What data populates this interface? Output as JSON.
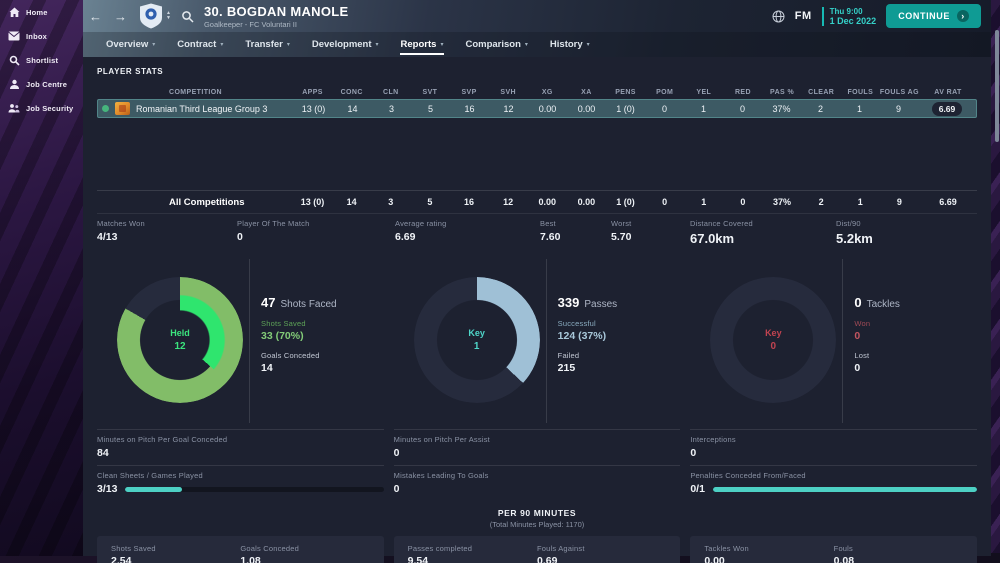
{
  "sidebar": {
    "items": [
      {
        "label": "Home",
        "icon": "home-icon"
      },
      {
        "label": "Inbox",
        "icon": "inbox-icon"
      },
      {
        "label": "Shortlist",
        "icon": "search-icon"
      },
      {
        "label": "Job Centre",
        "icon": "job-centre-icon"
      },
      {
        "label": "Job Security",
        "icon": "job-security-icon"
      }
    ]
  },
  "header": {
    "title": "30. BOGDAN MANOLE",
    "subtitle": "Goalkeeper - FC Voluntari II",
    "fm_logo": "FM",
    "datetime": {
      "time": "Thu 9:00",
      "date": "1 Dec 2022"
    },
    "continue_label": "CONTINUE",
    "tabs": [
      {
        "label": "Overview"
      },
      {
        "label": "Contract"
      },
      {
        "label": "Transfer"
      },
      {
        "label": "Development"
      },
      {
        "label": "Reports",
        "active": true
      },
      {
        "label": "Comparison"
      },
      {
        "label": "History"
      }
    ]
  },
  "player_stats": {
    "section_title": "PLAYER STATS",
    "columns": [
      "COMPETITION",
      "APPS",
      "CONC",
      "CLN",
      "SVT",
      "SVP",
      "SVH",
      "XG",
      "XA",
      "PENS",
      "POM",
      "YEL",
      "RED",
      "PAS %",
      "CLEAR",
      "FOULS",
      "FOULS AG",
      "AV RAT"
    ],
    "rows": [
      {
        "competition": "Romanian Third League Group 3",
        "values": [
          "13 (0)",
          "14",
          "3",
          "5",
          "16",
          "12",
          "0.00",
          "0.00",
          "1 (0)",
          "0",
          "1",
          "0",
          "37%",
          "2",
          "1",
          "9",
          "6.69"
        ]
      }
    ],
    "totals": {
      "label": "All Competitions",
      "values": [
        "13 (0)",
        "14",
        "3",
        "5",
        "16",
        "12",
        "0.00",
        "0.00",
        "1 (0)",
        "0",
        "1",
        "0",
        "37%",
        "2",
        "1",
        "9",
        "6.69"
      ]
    }
  },
  "summary_stats": [
    {
      "label": "Matches Won",
      "value": "4/13"
    },
    {
      "label": "Player Of The Match",
      "value": "0"
    },
    {
      "label": "Average rating",
      "value": "6.69"
    },
    {
      "label": "Best",
      "value": "7.60"
    },
    {
      "label": "Worst",
      "value": "5.70"
    },
    {
      "label": "Distance Covered",
      "value": "67.0km"
    },
    {
      "label": "Dist/90",
      "value": "5.2km"
    }
  ],
  "donuts": [
    {
      "center_label": "Held",
      "center_value": "12",
      "headline_value": "47",
      "headline_label": "Shots Faced",
      "stat1_label": "Shots Saved",
      "stat1_value": "33 (70%)",
      "stat2_label": "Goals Conceded",
      "stat2_value": "14",
      "accent_color": "#3be47e",
      "arcs": [
        {
          "color": "#82bd68",
          "from_deg": 0,
          "to_deg": 300,
          "band": "outer"
        },
        {
          "color": "#2fe56e",
          "from_deg": 0,
          "to_deg": 131,
          "band": "inner"
        }
      ]
    },
    {
      "center_label": "Key",
      "center_value": "1",
      "headline_value": "339",
      "headline_label": "Passes",
      "stat1_label": "Successful",
      "stat1_value": "124 (37%)",
      "stat2_label": "Failed",
      "stat2_value": "215",
      "accent_color": "#4fd6c9",
      "arcs": [
        {
          "color": "#9fc0d6",
          "from_deg": 0,
          "to_deg": 133,
          "band": "outer"
        }
      ]
    },
    {
      "center_label": "Key",
      "center_value": "0",
      "headline_value": "0",
      "headline_label": "Tackles",
      "stat1_label": "Won",
      "stat1_value": "0",
      "stat2_label": "Lost",
      "stat2_value": "0",
      "accent_color": "#c04350",
      "arcs": []
    }
  ],
  "mid_row1": [
    {
      "label": "Minutes on Pitch Per Goal Conceded",
      "value": "84"
    },
    {
      "label": "Minutes on Pitch Per Assist",
      "value": "0"
    },
    {
      "label": "Interceptions",
      "value": "0"
    }
  ],
  "mid_row2": [
    {
      "label": "Clean Sheets / Games Played",
      "value": "3/13",
      "bar_pct": 22
    },
    {
      "label": "Mistakes Leading To Goals",
      "value": "0",
      "bar_pct": null
    },
    {
      "label": "Penalties Conceded From/Faced",
      "value": "0/1",
      "bar_pct": 100
    }
  ],
  "per90": {
    "title": "PER 90 MINUTES",
    "subtitle": "(Total Minutes Played: 1170)",
    "panels": [
      [
        {
          "label": "Shots Saved",
          "value": "2.54"
        },
        {
          "label": "Goals Conceded",
          "value": "1.08"
        }
      ],
      [
        {
          "label": "Passes completed",
          "value": "9.54"
        },
        {
          "label": "Fouls Against",
          "value": "0.69"
        }
      ],
      [
        {
          "label": "Tackles Won",
          "value": "0.00"
        },
        {
          "label": "Fouls",
          "value": "0.08"
        }
      ]
    ]
  },
  "colors": {
    "accent_teal": "#4dd0c4",
    "continue_green": "#0f9b94",
    "row_highlight": "#3d5a64",
    "content_bg": "#1d2130",
    "sidebar_purple": "#2c1743",
    "saved_green": "#82bd68",
    "held_green": "#2fe56e",
    "passes_blue": "#9fc0d6",
    "tackles_red": "#c04350"
  }
}
